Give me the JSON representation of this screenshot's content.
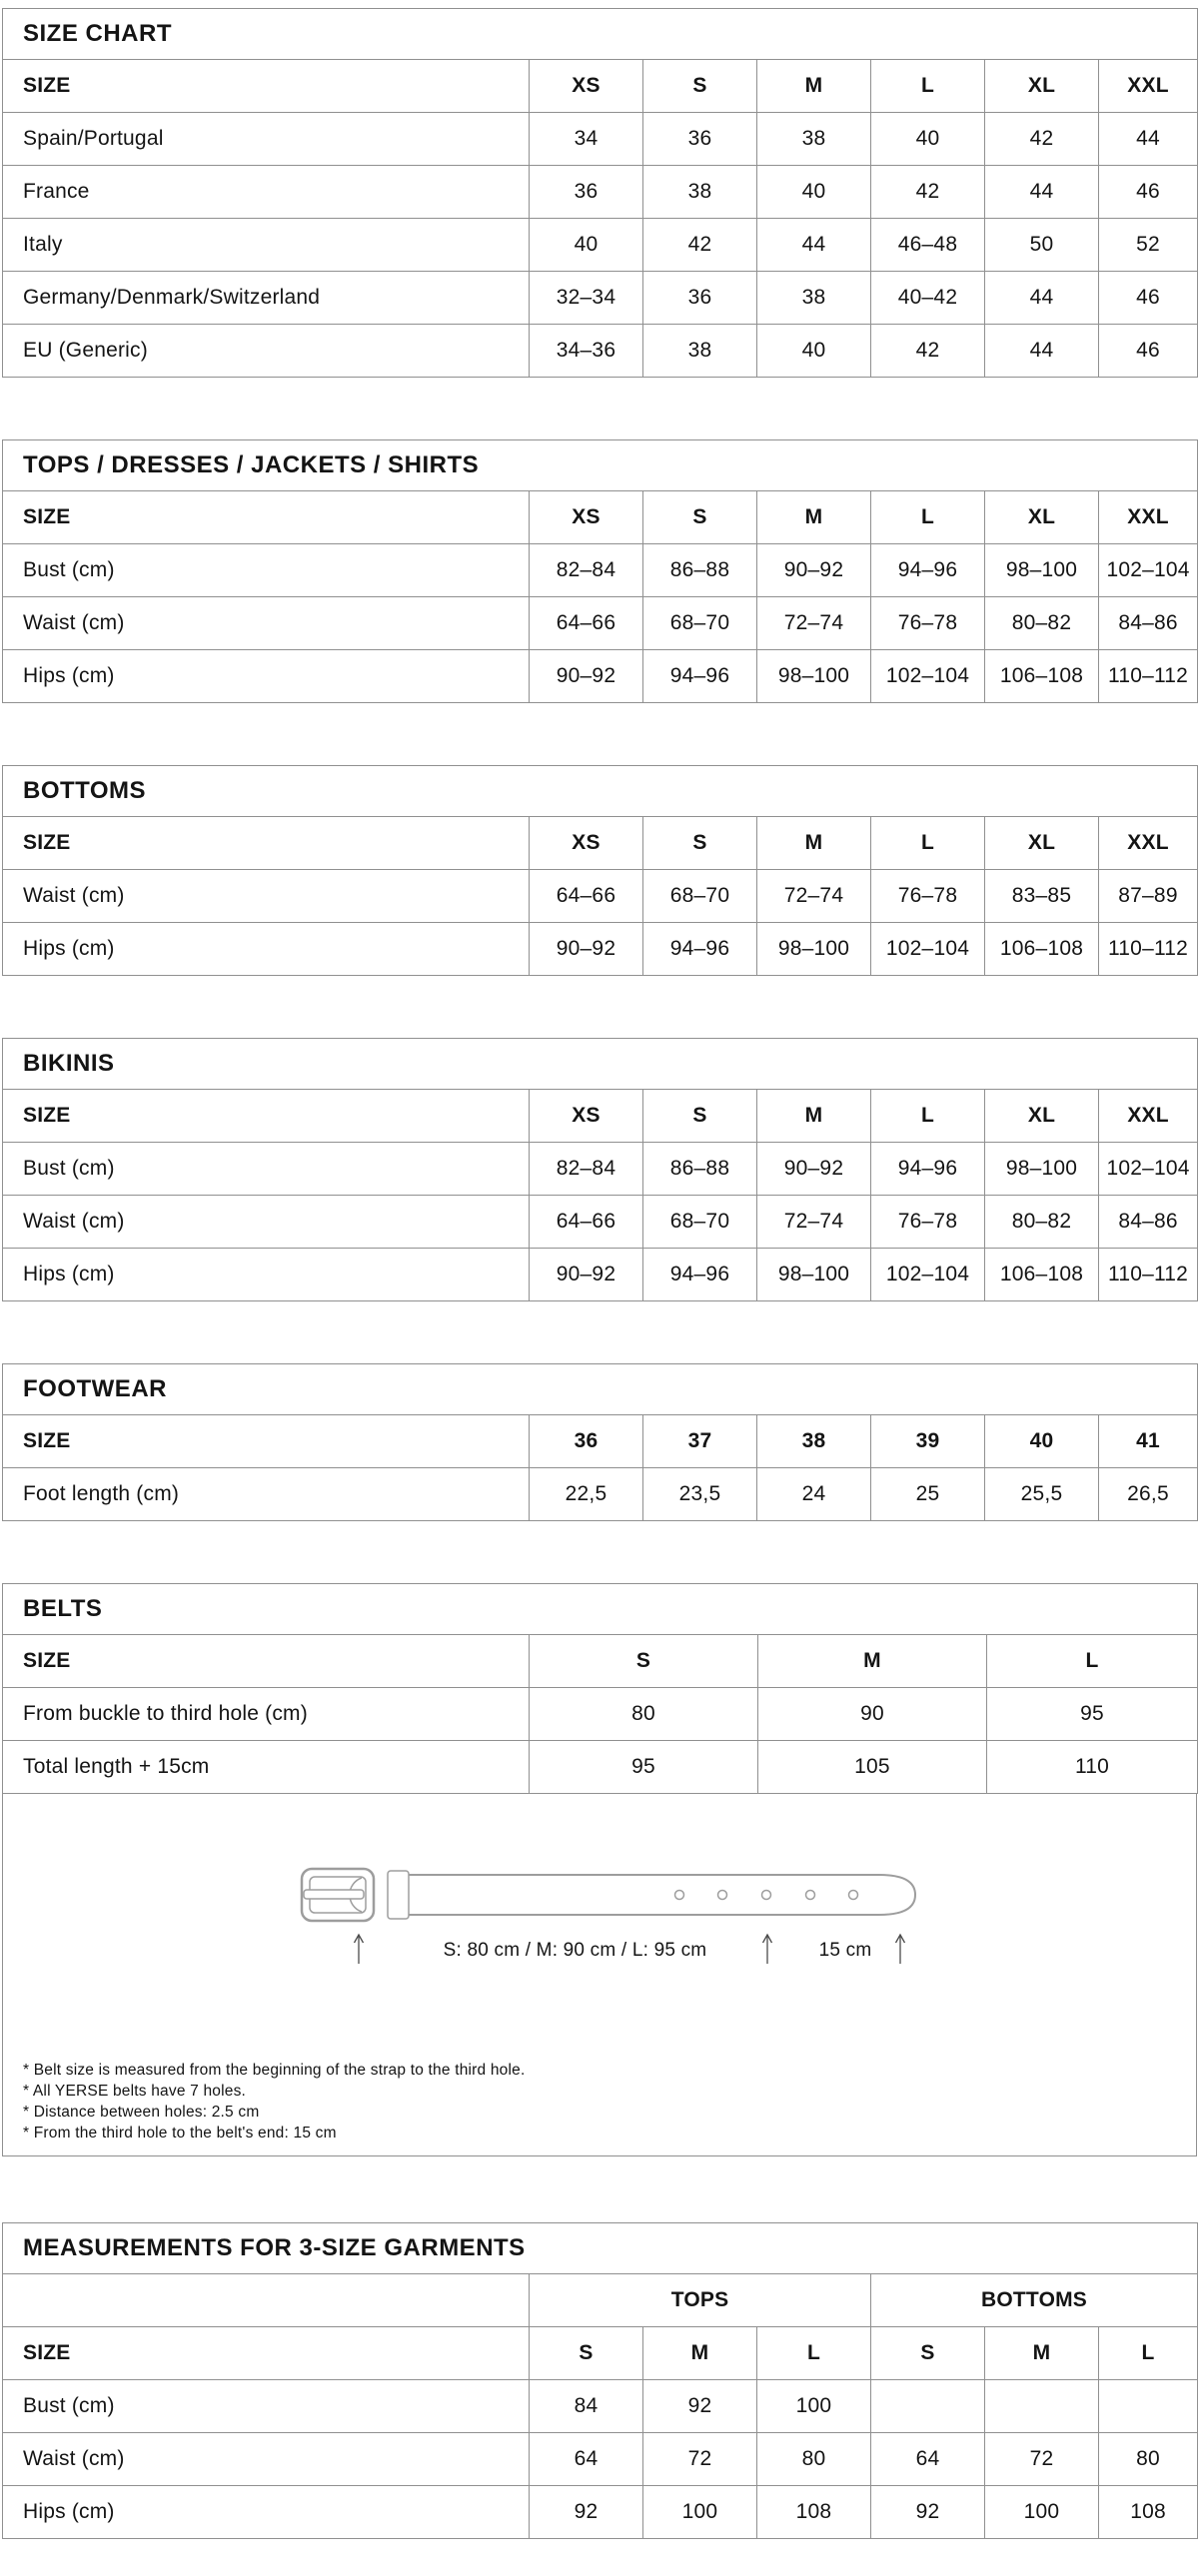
{
  "colors": {
    "background": "#ffffff",
    "text": "#141414",
    "table_border": "#909090",
    "belt_outline": "#9d9d9d",
    "arrow": "#4a4a4a"
  },
  "tables": {
    "size_chart": {
      "title": "SIZE CHART",
      "header": [
        "SIZE",
        "XS",
        "S",
        "M",
        "L",
        "XL",
        "XXL"
      ],
      "rows": [
        [
          "Spain/Portugal",
          "34",
          "36",
          "38",
          "40",
          "42",
          "44"
        ],
        [
          "France",
          "36",
          "38",
          "40",
          "42",
          "44",
          "46"
        ],
        [
          "Italy",
          "40",
          "42",
          "44",
          "46–48",
          "50",
          "52"
        ],
        [
          "Germany/Denmark/Switzerland",
          "32–34",
          "36",
          "38",
          "40–42",
          "44",
          "46"
        ],
        [
          "EU (Generic)",
          "34–36",
          "38",
          "40",
          "42",
          "44",
          "46"
        ]
      ]
    },
    "tops": {
      "title": "TOPS / DRESSES / JACKETS / SHIRTS",
      "header": [
        "SIZE",
        "XS",
        "S",
        "M",
        "L",
        "XL",
        "XXL"
      ],
      "rows": [
        [
          "Bust (cm)",
          "82–84",
          "86–88",
          "90–92",
          "94–96",
          "98–100",
          "102–104"
        ],
        [
          "Waist (cm)",
          "64–66",
          "68–70",
          "72–74",
          "76–78",
          "80–82",
          "84–86"
        ],
        [
          "Hips (cm)",
          "90–92",
          "94–96",
          "98–100",
          "102–104",
          "106–108",
          "110–112"
        ]
      ]
    },
    "bottoms": {
      "title": "BOTTOMS",
      "header": [
        "SIZE",
        "XS",
        "S",
        "M",
        "L",
        "XL",
        "XXL"
      ],
      "rows": [
        [
          "Waist (cm)",
          "64–66",
          "68–70",
          "72–74",
          "76–78",
          "83–85",
          "87–89"
        ],
        [
          "Hips (cm)",
          "90–92",
          "94–96",
          "98–100",
          "102–104",
          "106–108",
          "110–112"
        ]
      ]
    },
    "bikinis": {
      "title": "BIKINIS",
      "header": [
        "SIZE",
        "XS",
        "S",
        "M",
        "L",
        "XL",
        "XXL"
      ],
      "rows": [
        [
          "Bust (cm)",
          "82–84",
          "86–88",
          "90–92",
          "94–96",
          "98–100",
          "102–104"
        ],
        [
          "Waist (cm)",
          "64–66",
          "68–70",
          "72–74",
          "76–78",
          "80–82",
          "84–86"
        ],
        [
          "Hips (cm)",
          "90–92",
          "94–96",
          "98–100",
          "102–104",
          "106–108",
          "110–112"
        ]
      ]
    },
    "footwear": {
      "title": "FOOTWEAR",
      "header": [
        "SIZE",
        "36",
        "37",
        "38",
        "39",
        "40",
        "41"
      ],
      "rows": [
        [
          "Foot length (cm)",
          "22,5",
          "23,5",
          "24",
          "25",
          "25,5",
          "26,5"
        ]
      ]
    },
    "belts": {
      "title": "BELTS",
      "header": [
        "SIZE",
        "S",
        "M",
        "L"
      ],
      "rows": [
        [
          "From buckle to third hole (cm)",
          "80",
          "90",
          "95"
        ],
        [
          "Total length + 15cm",
          "95",
          "105",
          "110"
        ]
      ]
    },
    "three_size": {
      "title": "MEASUREMENTS FOR 3-SIZE GARMENTS",
      "groups": [
        {
          "label": "",
          "span": 1
        },
        {
          "label": "TOPS",
          "span": 3
        },
        {
          "label": "BOTTOMS",
          "span": 3
        }
      ],
      "header": [
        "SIZE",
        "S",
        "M",
        "L",
        "S",
        "M",
        "L"
      ],
      "rows": [
        [
          "Bust (cm)",
          "84",
          "92",
          "100",
          "",
          "",
          ""
        ],
        [
          "Waist (cm)",
          "64",
          "72",
          "80",
          "64",
          "72",
          "80"
        ],
        [
          "Hips (cm)",
          "92",
          "100",
          "108",
          "92",
          "100",
          "108"
        ]
      ]
    }
  },
  "diagram": {
    "measure_label": "S: 80 cm / M: 90 cm / L: 95 cm",
    "tip_label": "15 cm",
    "notes": [
      "* Belt size is measured from the beginning of the strap to the third hole.",
      "* All YERSE belts have 7 holes.",
      "* Distance between holes: 2.5 cm",
      "* From the third hole to the belt's end: 15 cm"
    ]
  }
}
